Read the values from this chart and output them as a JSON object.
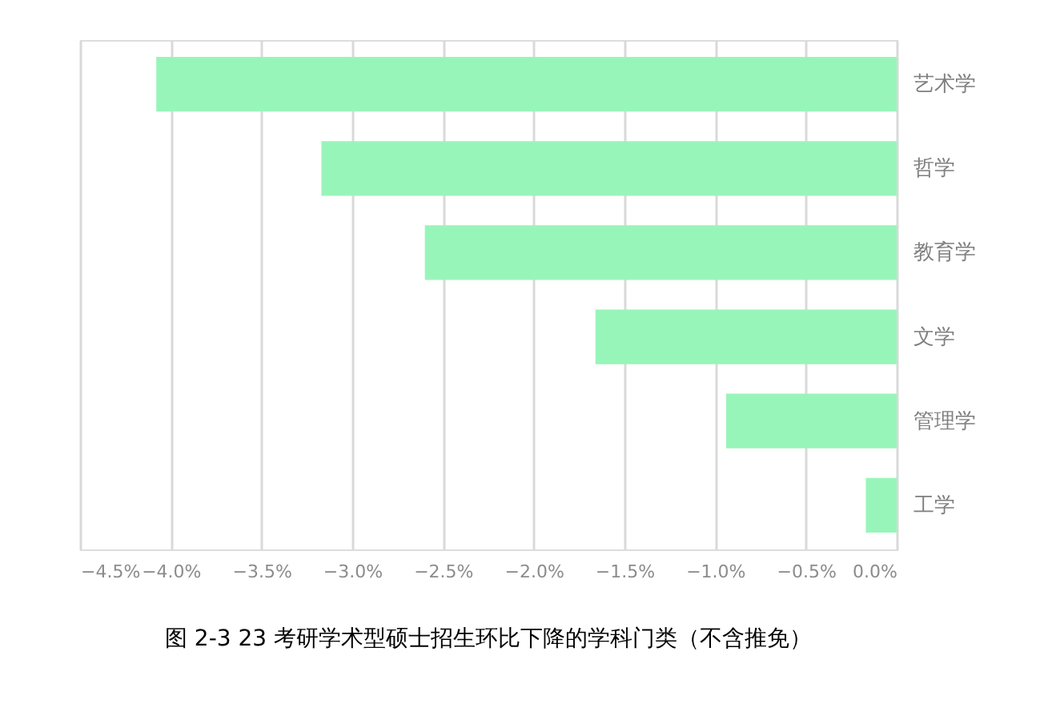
{
  "chart_data": {
    "type": "bar",
    "orientation": "horizontal",
    "title": "图 2-3 23 考研学术型硕士招生环比下降的学科门类（不含推免）",
    "categories": [
      "艺术学",
      "哲学",
      "教育学",
      "文学",
      "管理学",
      "工学"
    ],
    "values": [
      -4.08,
      -3.17,
      -2.6,
      -1.66,
      -0.94,
      -0.17
    ],
    "color": "#98f5b9",
    "xlim": [
      -4.5,
      0
    ],
    "xticks": [
      {
        "value": -4.5,
        "label": "−4.5%"
      },
      {
        "value": -4.0,
        "label": "−4.0%"
      },
      {
        "value": -3.5,
        "label": "−3.5%"
      },
      {
        "value": -3.0,
        "label": "−3.0%"
      },
      {
        "value": -2.5,
        "label": "−2.5%"
      },
      {
        "value": -2.0,
        "label": "−2.0%"
      },
      {
        "value": -1.5,
        "label": "−1.5%"
      },
      {
        "value": -1.0,
        "label": "−1.0%"
      },
      {
        "value": -0.5,
        "label": "−0.5%"
      },
      {
        "value": 0,
        "label": "0.0%"
      }
    ],
    "grid": "x"
  }
}
